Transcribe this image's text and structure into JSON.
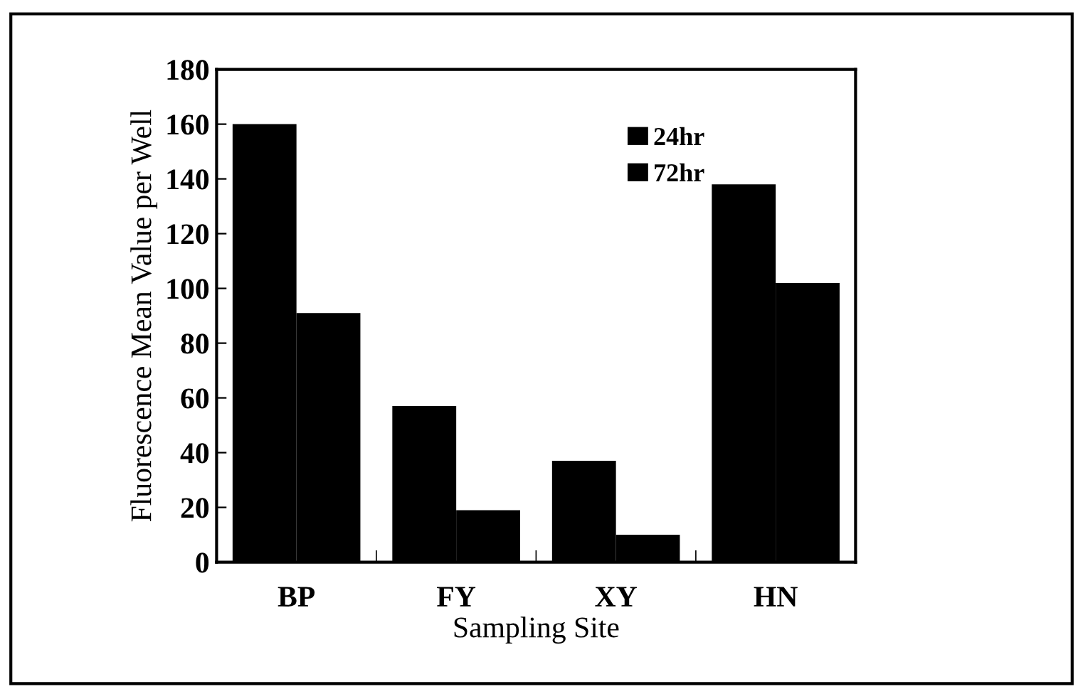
{
  "chart_data": {
    "type": "bar",
    "xlabel": "Sampling Site",
    "ylabel": "Fluorescence Mean Value per Well",
    "categories": [
      "BP",
      "FY",
      "XY",
      "HN"
    ],
    "series": [
      {
        "name": "24hr",
        "color": "#000000",
        "values": [
          160,
          57,
          37,
          138
        ]
      },
      {
        "name": "72hr",
        "color": "#000000",
        "values": [
          91,
          19,
          10,
          102
        ]
      }
    ],
    "ylim": [
      0,
      180
    ],
    "yticks": [
      0,
      20,
      40,
      60,
      80,
      100,
      120,
      140,
      160,
      180
    ],
    "grid": false,
    "legend": "top right"
  }
}
